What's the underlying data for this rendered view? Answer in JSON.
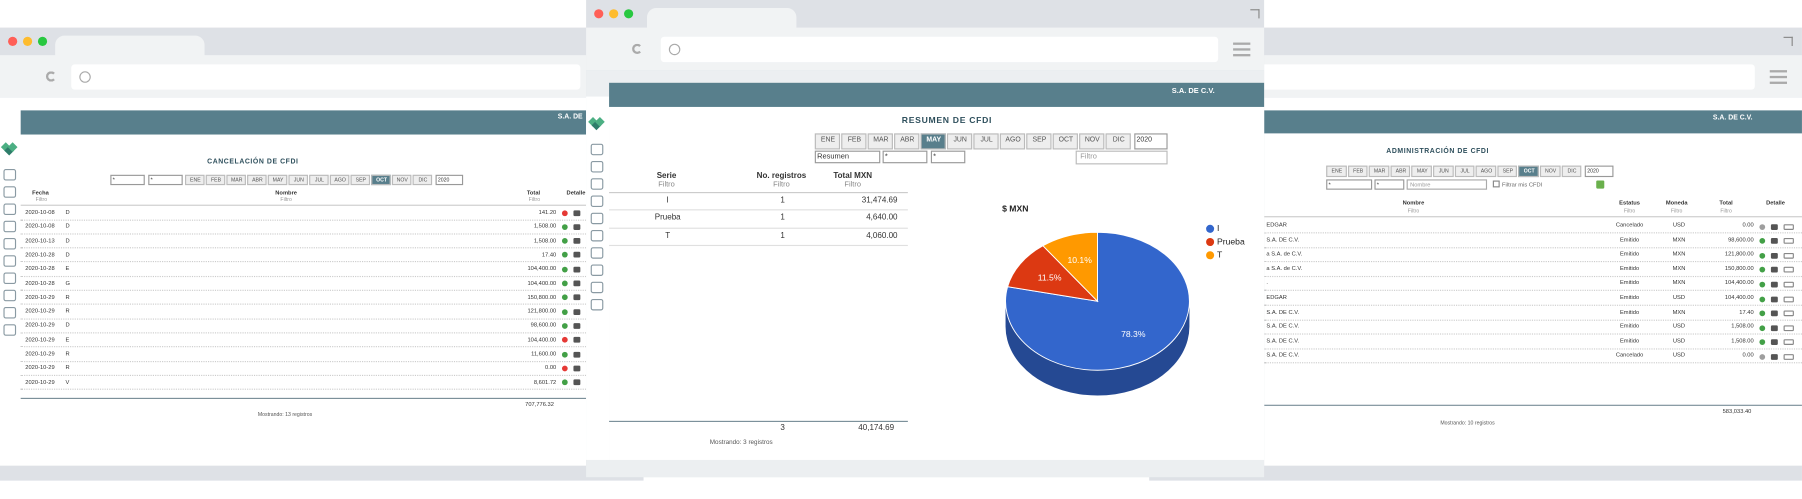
{
  "months": [
    "ENE",
    "FEB",
    "MAR",
    "ABR",
    "MAY",
    "JUN",
    "JUL",
    "AGO",
    "SEP",
    "OCT",
    "NOV",
    "DIC"
  ],
  "left_window": {
    "company": "S.A. DE",
    "title": "CANCELACIÓN DE CFDI",
    "selects": [
      "*",
      "*"
    ],
    "active_month": 9,
    "year": "2020",
    "columns": [
      {
        "name": "Fecha",
        "filter": "Filtro"
      },
      {
        "name": "Nombre",
        "filter": "Filtro"
      },
      {
        "name": "Total",
        "filter": "Filtro"
      },
      {
        "name": "Detalle"
      }
    ],
    "rows": [
      [
        "2020-10-08",
        "D",
        "141.20"
      ],
      [
        "2020-10-08",
        "D",
        "1,508.00"
      ],
      [
        "2020-10-13",
        "D",
        "1,508.00"
      ],
      [
        "2020-10-28",
        "D",
        "17.40"
      ],
      [
        "2020-10-28",
        "E",
        "104,400.00"
      ],
      [
        "2020-10-28",
        "G",
        "104,400.00"
      ],
      [
        "2020-10-29",
        "R",
        "150,800.00"
      ],
      [
        "2020-10-29",
        "R",
        "121,800.00"
      ],
      [
        "2020-10-29",
        "D",
        "98,600.00"
      ],
      [
        "2020-10-29",
        "E",
        "104,400.00"
      ],
      [
        "2020-10-29",
        "R",
        "11,600.00"
      ],
      [
        "2020-10-29",
        "R",
        "0.00"
      ],
      [
        "2020-10-29",
        "V",
        "8,601.72"
      ]
    ],
    "dots": [
      "#e53935",
      "#43a047",
      "#43a047",
      "#43a047",
      "#43a047",
      "#43a047",
      "#43a047",
      "#43a047",
      "#43a047",
      "#e53935",
      "#43a047",
      "#e53935",
      "#43a047"
    ],
    "total": "707,776.32",
    "footer": "Mostrando: 13 registros"
  },
  "center_window": {
    "company": "S.A. DE C.V.",
    "title": "RESUMEN DE CFDI",
    "active_month": 4,
    "year": "2020",
    "selects": [
      "Resumen",
      "*",
      "*"
    ],
    "search_placeholder": "Filtro",
    "columns": [
      {
        "name": "Serie",
        "filter": "Filtro"
      },
      {
        "name": "No. registros",
        "filter": "Filtro"
      },
      {
        "name": "Total MXN",
        "filter": "Filtro"
      }
    ],
    "rows": [
      [
        "I",
        "1",
        "31,474.69"
      ],
      [
        "Prueba",
        "1",
        "4,640.00"
      ],
      [
        "T",
        "1",
        "4,060.00"
      ]
    ],
    "totals": [
      "3",
      "40,174.69"
    ],
    "footer": "Mostrando: 3 registros"
  },
  "right_window": {
    "company": "S.A. DE C.V.",
    "title": "ADMINISTRACIÓN DE CFDI",
    "active_month": 9,
    "year": "2020",
    "selects": [
      "*",
      "*"
    ],
    "name_placeholder": "Nombre",
    "checkbox_label": "Filtrar mis CFDI",
    "columns": [
      {
        "name": "Nombre",
        "filter": "Filtro"
      },
      {
        "name": "Estatus",
        "filter": "Filtro"
      },
      {
        "name": "Moneda",
        "filter": "Filtro"
      },
      {
        "name": "Total",
        "filter": "Filtro"
      },
      {
        "name": "Detalle"
      }
    ],
    "rows": [
      [
        "EDGAR",
        "Cancelado",
        "USD",
        "0.00"
      ],
      [
        "S.A. DE C.V.",
        "Emitido",
        "MXN",
        "98,600.00"
      ],
      [
        "a S.A. de C.V.",
        "Emitido",
        "MXN",
        "121,800.00"
      ],
      [
        "a S.A. de C.V.",
        "Emitido",
        "MXN",
        "150,800.00"
      ],
      [
        ".",
        "Emitido",
        "MXN",
        "104,400.00"
      ],
      [
        "EDGAR",
        "Emitido",
        "USD",
        "104,400.00"
      ],
      [
        "S.A. DE C.V.",
        "Emitido",
        "MXN",
        "17.40"
      ],
      [
        "S.A. DE C.V.",
        "Emitido",
        "USD",
        "1,508.00"
      ],
      [
        "S.A. DE C.V.",
        "Emitido",
        "USD",
        "1,508.00"
      ],
      [
        "S.A. DE C.V.",
        "Cancelado",
        "USD",
        "0.00"
      ]
    ],
    "dots": [
      "#9e9e9e",
      "#43a047",
      "#43a047",
      "#43a047",
      "#43a047",
      "#43a047",
      "#43a047",
      "#43a047",
      "#43a047",
      "#9e9e9e"
    ],
    "total": "583,033.40",
    "footer": "Mostrando: 10 registros"
  },
  "chart_data": {
    "type": "pie",
    "title": "$ MXN",
    "categories": [
      "I",
      "Prueba",
      "T"
    ],
    "values": [
      78.3,
      11.5,
      10.1
    ],
    "value_labels": [
      "78.3%",
      "11.5%",
      "10.1%"
    ],
    "colors": [
      "#3366cc",
      "#dc3912",
      "#ff9900"
    ]
  }
}
